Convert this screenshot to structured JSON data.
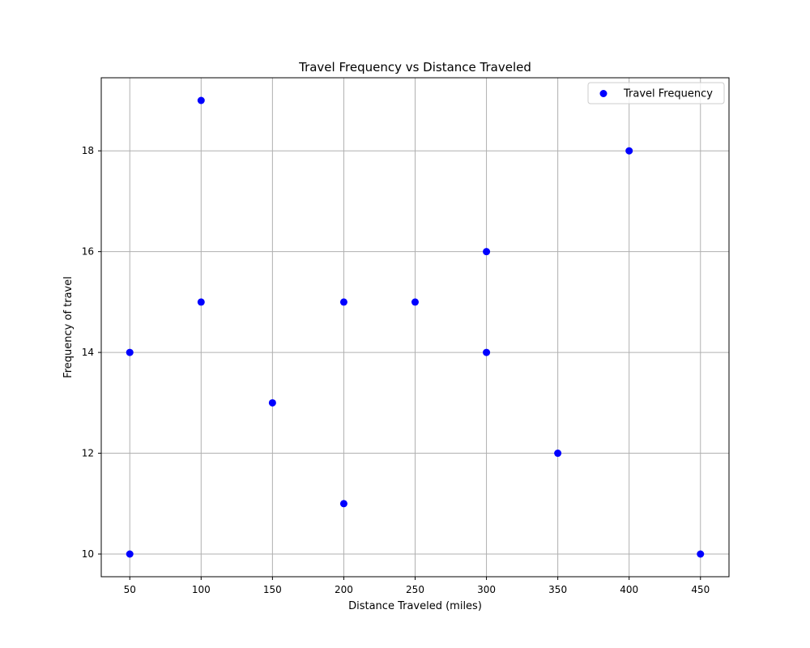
{
  "chart_data": {
    "type": "scatter",
    "title": "Travel Frequency vs Distance Traveled",
    "xlabel": "Distance Traveled (miles)",
    "ylabel": "Frequency of travel",
    "xlim": [
      30,
      470
    ],
    "ylim": [
      9.55,
      19.45
    ],
    "xticks": [
      50,
      100,
      150,
      200,
      250,
      300,
      350,
      400,
      450
    ],
    "yticks": [
      10,
      12,
      14,
      16,
      18
    ],
    "grid": true,
    "legend_position": "top-right",
    "series": [
      {
        "name": "Travel Frequency",
        "color": "#0000ff",
        "marker": "circle",
        "points": [
          {
            "x": 50,
            "y": 14
          },
          {
            "x": 50,
            "y": 10
          },
          {
            "x": 100,
            "y": 19
          },
          {
            "x": 100,
            "y": 15
          },
          {
            "x": 150,
            "y": 13
          },
          {
            "x": 200,
            "y": 15
          },
          {
            "x": 200,
            "y": 11
          },
          {
            "x": 250,
            "y": 15
          },
          {
            "x": 300,
            "y": 16
          },
          {
            "x": 300,
            "y": 14
          },
          {
            "x": 350,
            "y": 12
          },
          {
            "x": 400,
            "y": 18
          },
          {
            "x": 450,
            "y": 10
          }
        ]
      }
    ]
  },
  "colors": {
    "grid": "#b0b0b0",
    "axes": "#000000",
    "legend_border": "#cccccc"
  }
}
